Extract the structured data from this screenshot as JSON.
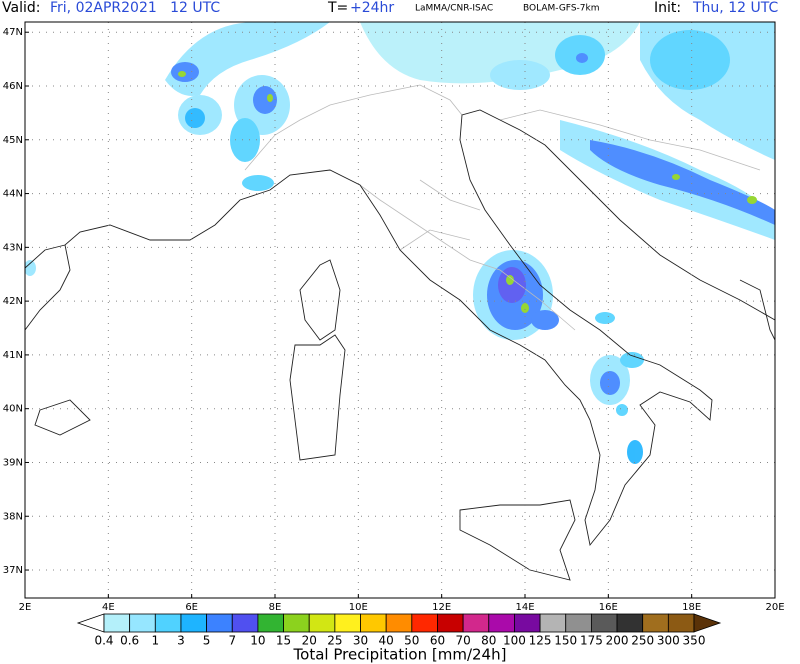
{
  "header": {
    "valid_label": "Valid:",
    "valid_time": "Fri, 02APR2021   12 UTC",
    "step_label": "T=",
    "step": "+24hr",
    "institution": "LaMMA/CNR-ISAC",
    "model": "BOLAM-GFS-7km",
    "init_label": "Init:",
    "init_time": "Thu, 12 UTC"
  },
  "map": {
    "lonlim": [
      2,
      20
    ],
    "latlim": [
      36.48,
      47.19
    ],
    "lat_ticks": [
      {
        "value": 37,
        "label": "37N"
      },
      {
        "value": 38,
        "label": "38N"
      },
      {
        "value": 39,
        "label": "39N"
      },
      {
        "value": 40,
        "label": "40N"
      },
      {
        "value": 41,
        "label": "41N"
      },
      {
        "value": 42,
        "label": "42N"
      },
      {
        "value": 43,
        "label": "43N"
      },
      {
        "value": 44,
        "label": "44N"
      },
      {
        "value": 45,
        "label": "45N"
      },
      {
        "value": 46,
        "label": "46N"
      },
      {
        "value": 47,
        "label": "47N"
      }
    ],
    "lon_ticks": [
      {
        "value": 2,
        "label": "2E"
      },
      {
        "value": 4,
        "label": "4E"
      },
      {
        "value": 6,
        "label": "6E"
      },
      {
        "value": 8,
        "label": "8E"
      },
      {
        "value": 10,
        "label": "10E"
      },
      {
        "value": 12,
        "label": "12E"
      },
      {
        "value": 14,
        "label": "14E"
      },
      {
        "value": 16,
        "label": "16E"
      },
      {
        "value": 18,
        "label": "18E"
      },
      {
        "value": 20,
        "label": "20E"
      }
    ]
  },
  "colorbar": {
    "title": "Total Precipitation [mm/24h]",
    "levels": [
      0.4,
      0.6,
      1,
      3,
      5,
      7,
      10,
      15,
      20,
      25,
      30,
      40,
      50,
      60,
      70,
      80,
      100,
      125,
      150,
      175,
      200,
      250,
      300,
      350
    ],
    "colors": [
      "#ffffff",
      "#b4f0fa",
      "#96e6ff",
      "#50d2ff",
      "#1eb4ff",
      "#3c82ff",
      "#5050f0",
      "#32b432",
      "#8cd21e",
      "#d2e614",
      "#fff01e",
      "#ffc800",
      "#ff8c00",
      "#ff2800",
      "#c80000",
      "#d2288c",
      "#aa0aaa",
      "#780aa0",
      "#b4b4b4",
      "#909090",
      "#5a5a5a",
      "#323232",
      "#a06e1e",
      "#8c5a14",
      "#5a3208"
    ]
  }
}
